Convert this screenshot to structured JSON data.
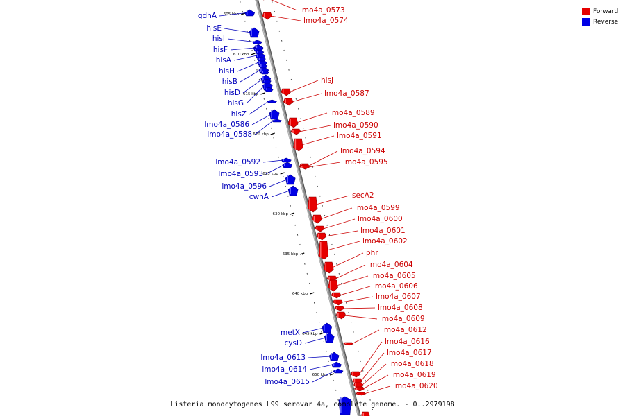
{
  "legend": [
    {
      "label": "Forward",
      "color": "#e60000"
    },
    {
      "label": "Reverse",
      "color": "#0000e6"
    }
  ],
  "caption": "Listeria monocytogenes L99 serovar 4a, complete genome. - 0..2979198",
  "colors": {
    "forward": "#e60000",
    "reverse": "#0000e6",
    "backbone": "#8c8c8c",
    "label_forward": "#cc0000",
    "label_reverse": "#0000bb"
  },
  "scale_ticks": [
    "605 kbp",
    "610 kbp",
    "615 kbp",
    "620 kbp",
    "625 kbp",
    "630 kbp",
    "635 kbp",
    "640 kbp",
    "645 kbp",
    "650 kbp"
  ],
  "reverse_genes": [
    "gdhA",
    "hisE",
    "hisI",
    "hisF",
    "hisA",
    "hisH",
    "hisB",
    "hisD",
    "hisG",
    "hisZ",
    "lmo4a_0586",
    "lmo4a_0588",
    "lmo4a_0592",
    "lmo4a_0593",
    "lmo4a_0596",
    "cwhA",
    "metX",
    "cysD",
    "lmo4a_0613",
    "lmo4a_0614",
    "lmo4a_0615"
  ],
  "forward_genes": [
    "lmo4a_0573",
    "lmo4a_0574",
    "hisJ",
    "lmo4a_0587",
    "lmo4a_0589",
    "lmo4a_0590",
    "lmo4a_0591",
    "lmo4a_0594",
    "lmo4a_0595",
    "secA2",
    "lmo4a_0599",
    "lmo4a_0600",
    "lmo4a_0601",
    "lmo4a_0602",
    "phr",
    "lmo4a_0604",
    "lmo4a_0605",
    "lmo4a_0606",
    "lmo4a_0607",
    "lmo4a_0608",
    "lmo4a_0609",
    "lmo4a_0612",
    "lmo4a_0616",
    "lmo4a_0617",
    "lmo4a_0618",
    "lmo4a_0619",
    "lmo4a_0620"
  ]
}
